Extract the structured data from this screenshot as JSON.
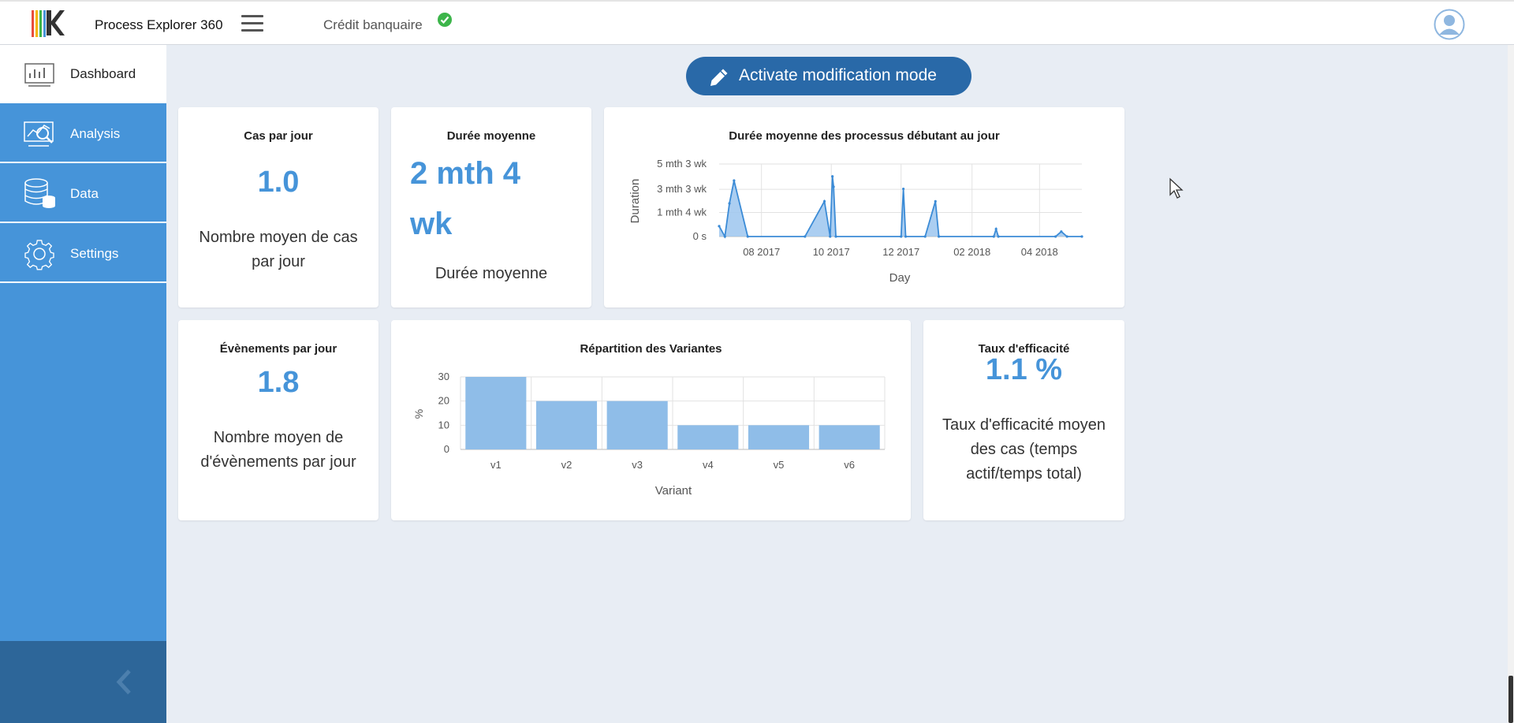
{
  "header": {
    "app_name": "Process Explorer 360",
    "project_name": "Crédit banquaire",
    "project_status": "valid"
  },
  "sidebar": {
    "items": [
      {
        "label": "Dashboard",
        "icon": "dashboard-icon",
        "active": true
      },
      {
        "label": "Analysis",
        "icon": "analysis-icon",
        "active": false
      },
      {
        "label": "Data",
        "icon": "database-icon",
        "active": false
      },
      {
        "label": "Settings",
        "icon": "gear-icon",
        "active": false
      }
    ]
  },
  "toolbar": {
    "modification_label": "Activate modification mode"
  },
  "cards": {
    "cases_per_day": {
      "title": "Cas par jour",
      "value": "1.0",
      "description": "Nombre moyen de cas par jour"
    },
    "avg_duration": {
      "title": "Durée moyenne",
      "value": "2 mth 4 wk",
      "description": "Durée moyenne"
    },
    "events_per_day": {
      "title": "Évènements par jour",
      "value": "1.8",
      "description": "Nombre moyen de d'évènements par jour"
    },
    "efficiency": {
      "title": "Taux d'efficacité",
      "value": "1.1 %",
      "description": "Taux d'efficacité moyen des cas (temps actif/temps total)"
    }
  },
  "chart_data": [
    {
      "type": "area",
      "title": "Durée moyenne des processus débutant au jour",
      "xlabel": "Day",
      "ylabel": "Duration",
      "x_ticks": [
        "08 2017",
        "10 2017",
        "12 2017",
        "02 2018",
        "04 2018"
      ],
      "y_ticks": [
        "0 s",
        "1 mth 4 wk",
        "3 mth 3 wk",
        "5 mth 3 wk"
      ],
      "y_unit": "days",
      "ylim": [
        0,
        175
      ],
      "grid": true,
      "points": [
        {
          "x": "2017-06-25",
          "y": 25
        },
        {
          "x": "2017-06-30",
          "y": 0
        },
        {
          "x": "2017-07-04",
          "y": 80
        },
        {
          "x": "2017-07-08",
          "y": 135
        },
        {
          "x": "2017-07-20",
          "y": 0
        },
        {
          "x": "2017-09-08",
          "y": 0
        },
        {
          "x": "2017-09-25",
          "y": 85
        },
        {
          "x": "2017-09-30",
          "y": 0
        },
        {
          "x": "2017-10-02",
          "y": 145
        },
        {
          "x": "2017-10-03",
          "y": 120
        },
        {
          "x": "2017-10-05",
          "y": 0
        },
        {
          "x": "2017-12-01",
          "y": 0
        },
        {
          "x": "2017-12-03",
          "y": 115
        },
        {
          "x": "2017-12-05",
          "y": 0
        },
        {
          "x": "2017-12-22",
          "y": 0
        },
        {
          "x": "2017-12-31",
          "y": 85
        },
        {
          "x": "2018-01-03",
          "y": 0
        },
        {
          "x": "2018-02-20",
          "y": 0
        },
        {
          "x": "2018-02-22",
          "y": 18
        },
        {
          "x": "2018-02-24",
          "y": 0
        },
        {
          "x": "2018-04-15",
          "y": 0
        },
        {
          "x": "2018-04-20",
          "y": 12
        },
        {
          "x": "2018-04-25",
          "y": 0
        },
        {
          "x": "2018-05-08",
          "y": 0
        }
      ]
    },
    {
      "type": "bar",
      "title": "Répartition des Variantes",
      "xlabel": "Variant",
      "ylabel": "%",
      "categories": [
        "v1",
        "v2",
        "v3",
        "v4",
        "v5",
        "v6"
      ],
      "values": [
        30,
        20,
        20,
        10,
        10,
        10
      ],
      "ylim": [
        0,
        30
      ],
      "y_ticks": [
        0,
        10,
        20,
        30
      ],
      "grid": true,
      "bar_color": "#8fbde8"
    }
  ],
  "colors": {
    "accent": "#4694d9",
    "button": "#2969a8",
    "sidebar_bottom": "#2d6699",
    "success": "#3cb54a"
  }
}
